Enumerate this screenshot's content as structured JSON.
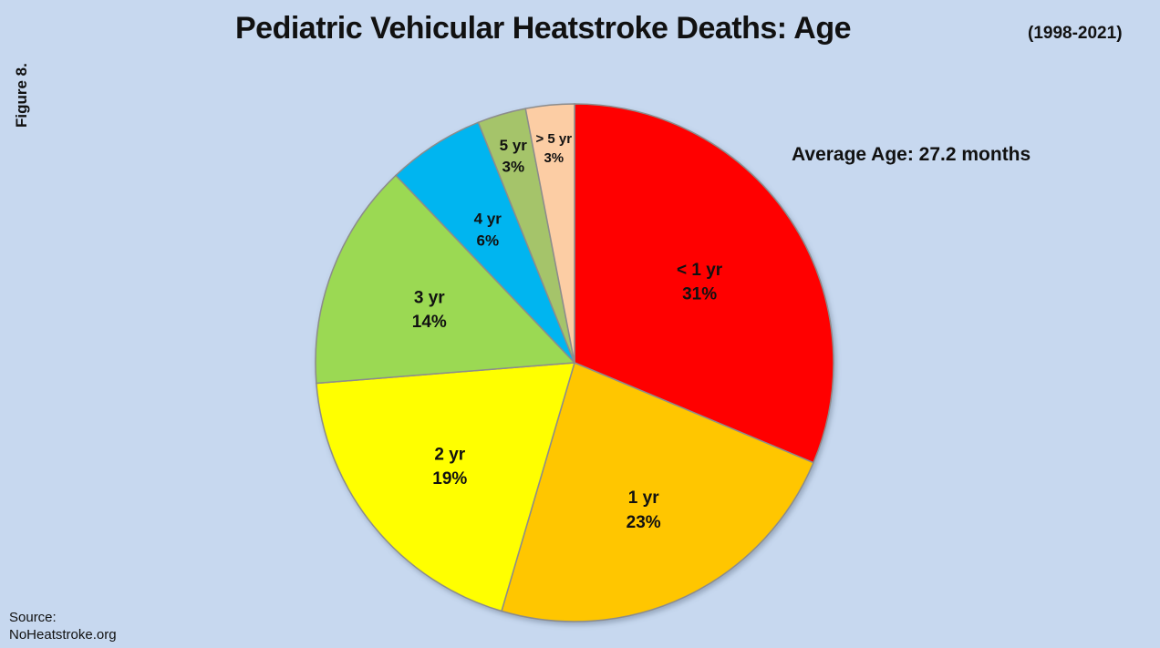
{
  "figure_label": "Figure 8.",
  "source": {
    "line1": "Source:",
    "line2": "NoHeatstroke.org"
  },
  "chart_data": {
    "type": "pie",
    "title": "Pediatric Vehicular Heatstroke Deaths: Age",
    "subtitle": "(1998-2021)",
    "annotation": "Average Age: 27.2 months",
    "start_angle_deg": 0,
    "direction": "clockwise",
    "slices": [
      {
        "label": "< 1 yr",
        "value": 31,
        "value_label": "31%",
        "color": "#ff0000"
      },
      {
        "label": "1 yr",
        "value": 23,
        "value_label": "23%",
        "color": "#ffc600"
      },
      {
        "label": "2 yr",
        "value": 19,
        "value_label": "19%",
        "color": "#ffff00"
      },
      {
        "label": "3 yr",
        "value": 14,
        "value_label": "14%",
        "color": "#9bd952"
      },
      {
        "label": "4 yr",
        "value": 6,
        "value_label": "6%",
        "color": "#00b5f0"
      },
      {
        "label": "5 yr",
        "value": 3,
        "value_label": "3%",
        "color": "#a5c46a"
      },
      {
        "label": "> 5 yr",
        "value": 3,
        "value_label": "3%",
        "color": "#fccda4"
      }
    ]
  }
}
